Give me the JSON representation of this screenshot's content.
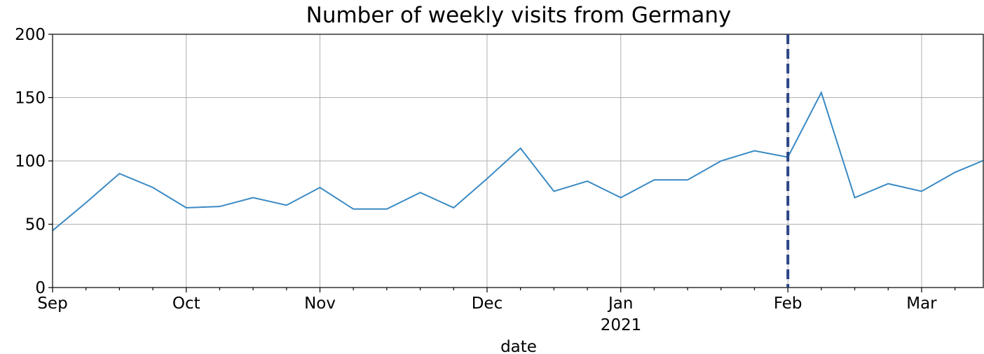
{
  "chart_data": {
    "type": "line",
    "title": "Number of weekly visits from Germany",
    "xlabel": "date",
    "year_label": "2021",
    "categories": [
      "Sep",
      null,
      null,
      null,
      "Oct",
      null,
      null,
      null,
      "Nov",
      null,
      null,
      null,
      null,
      "Dec",
      null,
      null,
      null,
      "Jan",
      null,
      null,
      null,
      null,
      "Feb",
      null,
      null,
      null,
      "Mar",
      null,
      null
    ],
    "series": [
      {
        "name": "visits",
        "color": "#3a8ac4",
        "values": [
          45,
          67,
          90,
          79,
          63,
          64,
          71,
          65,
          79,
          62,
          62,
          75,
          63,
          86,
          110,
          76,
          84,
          71,
          85,
          85,
          100,
          108,
          103,
          154,
          71,
          82,
          76,
          91,
          102
        ]
      }
    ],
    "ylim": [
      0,
      200
    ],
    "yticks": [
      0,
      50,
      100,
      150,
      200
    ],
    "grid": true,
    "vline": {
      "category": 22,
      "color": "#2b4586",
      "dashed": true
    }
  }
}
